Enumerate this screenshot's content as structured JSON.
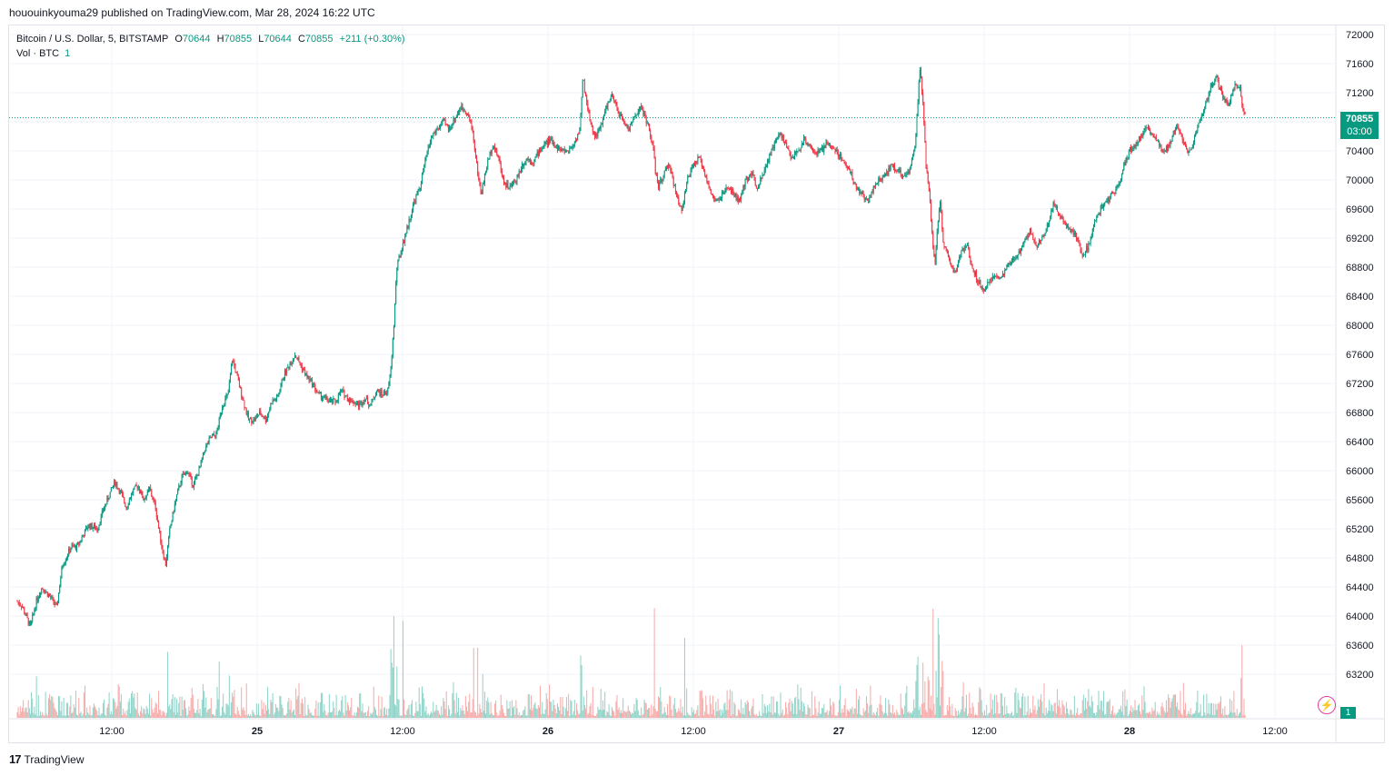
{
  "header": {
    "published_line": "hououinkyouma29 published on TradingView.com, Mar 28, 2024 16:22 UTC"
  },
  "legend": {
    "symbol": "Bitcoin / U.S. Dollar, 5, BITSTAMP",
    "o_label": "O",
    "o_value": "70644",
    "h_label": "H",
    "h_value": "70855",
    "l_label": "L",
    "l_value": "70644",
    "c_label": "C",
    "c_value": "70855",
    "change": "+211 (+0.30%)",
    "vol_label": "Vol · BTC",
    "vol_value": "1"
  },
  "price_badge": {
    "price": "70855",
    "timer": "03:00"
  },
  "volume_badge": "1",
  "brand": {
    "logo": "17",
    "name": "TradingView"
  },
  "colors": {
    "up": "#089981",
    "down": "#f23645",
    "grid": "#f0f3fa",
    "vol_up": "#8dd3c7",
    "vol_down": "#f7a9a8"
  },
  "chart_data": {
    "type": "line",
    "title": "Bitcoin / U.S. Dollar, 5, BITSTAMP",
    "xlabel": "",
    "ylabel": "",
    "ylim": [
      61900,
      72200
    ],
    "yticks": [
      72000,
      71600,
      71200,
      70800,
      70400,
      70000,
      69600,
      69200,
      68800,
      68400,
      68000,
      67600,
      67200,
      66800,
      66400,
      66000,
      65600,
      65200,
      64800,
      64400,
      64000,
      63600,
      63200
    ],
    "xticks": [
      {
        "label": "12:00",
        "t": 0.5
      },
      {
        "label": "25",
        "t": 1.0
      },
      {
        "label": "12:00",
        "t": 1.5
      },
      {
        "label": "26",
        "t": 2.0
      },
      {
        "label": "12:00",
        "t": 2.5
      },
      {
        "label": "27",
        "t": 3.0
      },
      {
        "label": "12:00",
        "t": 3.5
      },
      {
        "label": "28",
        "t": 4.0
      },
      {
        "label": "12:00",
        "t": 4.5
      }
    ],
    "x_range_days": [
      0.175,
      4.91
    ],
    "last_price": 70855,
    "series": [
      {
        "name": "Bitcoin / U.S. Dollar",
        "kind": "close_path",
        "points": [
          [
            0.175,
            64200
          ],
          [
            0.19,
            64150
          ],
          [
            0.205,
            64000
          ],
          [
            0.22,
            63850
          ],
          [
            0.24,
            64200
          ],
          [
            0.26,
            64400
          ],
          [
            0.28,
            64300
          ],
          [
            0.3,
            64200
          ],
          [
            0.31,
            64100
          ],
          [
            0.33,
            64700
          ],
          [
            0.36,
            64950
          ],
          [
            0.38,
            64950
          ],
          [
            0.4,
            65100
          ],
          [
            0.42,
            65250
          ],
          [
            0.45,
            65200
          ],
          [
            0.47,
            65450
          ],
          [
            0.49,
            65650
          ],
          [
            0.51,
            65850
          ],
          [
            0.53,
            65700
          ],
          [
            0.55,
            65500
          ],
          [
            0.57,
            65700
          ],
          [
            0.59,
            65800
          ],
          [
            0.61,
            65600
          ],
          [
            0.63,
            65750
          ],
          [
            0.65,
            65500
          ],
          [
            0.67,
            65000
          ],
          [
            0.685,
            64700
          ],
          [
            0.7,
            65200
          ],
          [
            0.72,
            65600
          ],
          [
            0.74,
            65900
          ],
          [
            0.76,
            66000
          ],
          [
            0.78,
            65800
          ],
          [
            0.8,
            66000
          ],
          [
            0.82,
            66300
          ],
          [
            0.84,
            66450
          ],
          [
            0.86,
            66500
          ],
          [
            0.88,
            66900
          ],
          [
            0.9,
            67050
          ],
          [
            0.915,
            67550
          ],
          [
            0.93,
            67300
          ],
          [
            0.95,
            67000
          ],
          [
            0.97,
            66700
          ],
          [
            0.99,
            66700
          ],
          [
            1.01,
            66800
          ],
          [
            1.03,
            66700
          ],
          [
            1.05,
            66950
          ],
          [
            1.07,
            67000
          ],
          [
            1.09,
            67300
          ],
          [
            1.11,
            67450
          ],
          [
            1.13,
            67600
          ],
          [
            1.15,
            67450
          ],
          [
            1.17,
            67300
          ],
          [
            1.19,
            67200
          ],
          [
            1.21,
            67050
          ],
          [
            1.23,
            67000
          ],
          [
            1.25,
            66950
          ],
          [
            1.27,
            66950
          ],
          [
            1.29,
            67100
          ],
          [
            1.31,
            67000
          ],
          [
            1.33,
            66950
          ],
          [
            1.35,
            66900
          ],
          [
            1.37,
            67000
          ],
          [
            1.39,
            66900
          ],
          [
            1.41,
            67100
          ],
          [
            1.43,
            67050
          ],
          [
            1.45,
            67100
          ],
          [
            1.46,
            67400
          ],
          [
            1.47,
            68000
          ],
          [
            1.48,
            68800
          ],
          [
            1.5,
            69100
          ],
          [
            1.52,
            69400
          ],
          [
            1.54,
            69700
          ],
          [
            1.56,
            69900
          ],
          [
            1.58,
            70300
          ],
          [
            1.6,
            70600
          ],
          [
            1.62,
            70700
          ],
          [
            1.64,
            70800
          ],
          [
            1.66,
            70700
          ],
          [
            1.68,
            70850
          ],
          [
            1.7,
            71000
          ],
          [
            1.72,
            70950
          ],
          [
            1.74,
            70700
          ],
          [
            1.755,
            70200
          ],
          [
            1.77,
            69800
          ],
          [
            1.79,
            70200
          ],
          [
            1.81,
            70500
          ],
          [
            1.83,
            70300
          ],
          [
            1.85,
            69950
          ],
          [
            1.87,
            69900
          ],
          [
            1.89,
            70000
          ],
          [
            1.91,
            70200
          ],
          [
            1.93,
            70300
          ],
          [
            1.95,
            70250
          ],
          [
            1.97,
            70400
          ],
          [
            1.99,
            70500
          ],
          [
            2.01,
            70550
          ],
          [
            2.03,
            70450
          ],
          [
            2.05,
            70400
          ],
          [
            2.07,
            70400
          ],
          [
            2.09,
            70500
          ],
          [
            2.11,
            70700
          ],
          [
            2.12,
            71400
          ],
          [
            2.14,
            70900
          ],
          [
            2.16,
            70600
          ],
          [
            2.18,
            70700
          ],
          [
            2.2,
            71000
          ],
          [
            2.22,
            71150
          ],
          [
            2.24,
            70950
          ],
          [
            2.26,
            70800
          ],
          [
            2.28,
            70700
          ],
          [
            2.3,
            70900
          ],
          [
            2.32,
            71000
          ],
          [
            2.34,
            70800
          ],
          [
            2.36,
            70500
          ],
          [
            2.37,
            70100
          ],
          [
            2.38,
            69900
          ],
          [
            2.4,
            70100
          ],
          [
            2.42,
            70200
          ],
          [
            2.44,
            69800
          ],
          [
            2.46,
            69600
          ],
          [
            2.48,
            70000
          ],
          [
            2.5,
            70200
          ],
          [
            2.52,
            70300
          ],
          [
            2.54,
            70100
          ],
          [
            2.56,
            69800
          ],
          [
            2.58,
            69700
          ],
          [
            2.6,
            69800
          ],
          [
            2.62,
            69900
          ],
          [
            2.64,
            69800
          ],
          [
            2.66,
            69700
          ],
          [
            2.68,
            70000
          ],
          [
            2.7,
            70100
          ],
          [
            2.72,
            69900
          ],
          [
            2.74,
            70100
          ],
          [
            2.76,
            70300
          ],
          [
            2.78,
            70500
          ],
          [
            2.8,
            70650
          ],
          [
            2.82,
            70450
          ],
          [
            2.84,
            70300
          ],
          [
            2.86,
            70400
          ],
          [
            2.88,
            70550
          ],
          [
            2.9,
            70500
          ],
          [
            2.92,
            70350
          ],
          [
            2.94,
            70400
          ],
          [
            2.96,
            70500
          ],
          [
            2.98,
            70450
          ],
          [
            3.0,
            70350
          ],
          [
            3.02,
            70250
          ],
          [
            3.04,
            70100
          ],
          [
            3.06,
            69900
          ],
          [
            3.08,
            69800
          ],
          [
            3.1,
            69700
          ],
          [
            3.12,
            69900
          ],
          [
            3.14,
            70000
          ],
          [
            3.16,
            70050
          ],
          [
            3.18,
            70200
          ],
          [
            3.2,
            70150
          ],
          [
            3.22,
            70050
          ],
          [
            3.24,
            70100
          ],
          [
            3.26,
            70400
          ],
          [
            3.27,
            70900
          ],
          [
            3.28,
            71600
          ],
          [
            3.29,
            71000
          ],
          [
            3.3,
            70200
          ],
          [
            3.31,
            69900
          ],
          [
            3.32,
            69300
          ],
          [
            3.33,
            68800
          ],
          [
            3.34,
            69400
          ],
          [
            3.35,
            69700
          ],
          [
            3.36,
            69100
          ],
          [
            3.38,
            68900
          ],
          [
            3.4,
            68700
          ],
          [
            3.42,
            69000
          ],
          [
            3.44,
            69100
          ],
          [
            3.46,
            68800
          ],
          [
            3.48,
            68600
          ],
          [
            3.5,
            68500
          ],
          [
            3.52,
            68600
          ],
          [
            3.54,
            68700
          ],
          [
            3.56,
            68650
          ],
          [
            3.58,
            68800
          ],
          [
            3.6,
            68900
          ],
          [
            3.62,
            69000
          ],
          [
            3.64,
            69200
          ],
          [
            3.66,
            69300
          ],
          [
            3.68,
            69100
          ],
          [
            3.7,
            69200
          ],
          [
            3.72,
            69400
          ],
          [
            3.74,
            69700
          ],
          [
            3.76,
            69500
          ],
          [
            3.78,
            69400
          ],
          [
            3.8,
            69300
          ],
          [
            3.82,
            69200
          ],
          [
            3.84,
            68950
          ],
          [
            3.86,
            69100
          ],
          [
            3.88,
            69400
          ],
          [
            3.9,
            69600
          ],
          [
            3.92,
            69700
          ],
          [
            3.94,
            69800
          ],
          [
            3.96,
            69900
          ],
          [
            3.98,
            70200
          ],
          [
            4.0,
            70400
          ],
          [
            4.02,
            70500
          ],
          [
            4.04,
            70600
          ],
          [
            4.06,
            70700
          ],
          [
            4.08,
            70650
          ],
          [
            4.1,
            70500
          ],
          [
            4.12,
            70400
          ],
          [
            4.14,
            70500
          ],
          [
            4.16,
            70750
          ],
          [
            4.18,
            70600
          ],
          [
            4.2,
            70400
          ],
          [
            4.22,
            70500
          ],
          [
            4.24,
            70800
          ],
          [
            4.26,
            71000
          ],
          [
            4.28,
            71300
          ],
          [
            4.3,
            71400
          ],
          [
            4.32,
            71150
          ],
          [
            4.34,
            71000
          ],
          [
            4.36,
            71300
          ],
          [
            4.38,
            71250
          ],
          [
            4.39,
            70950
          ],
          [
            4.4,
            70855
          ]
        ]
      }
    ]
  }
}
